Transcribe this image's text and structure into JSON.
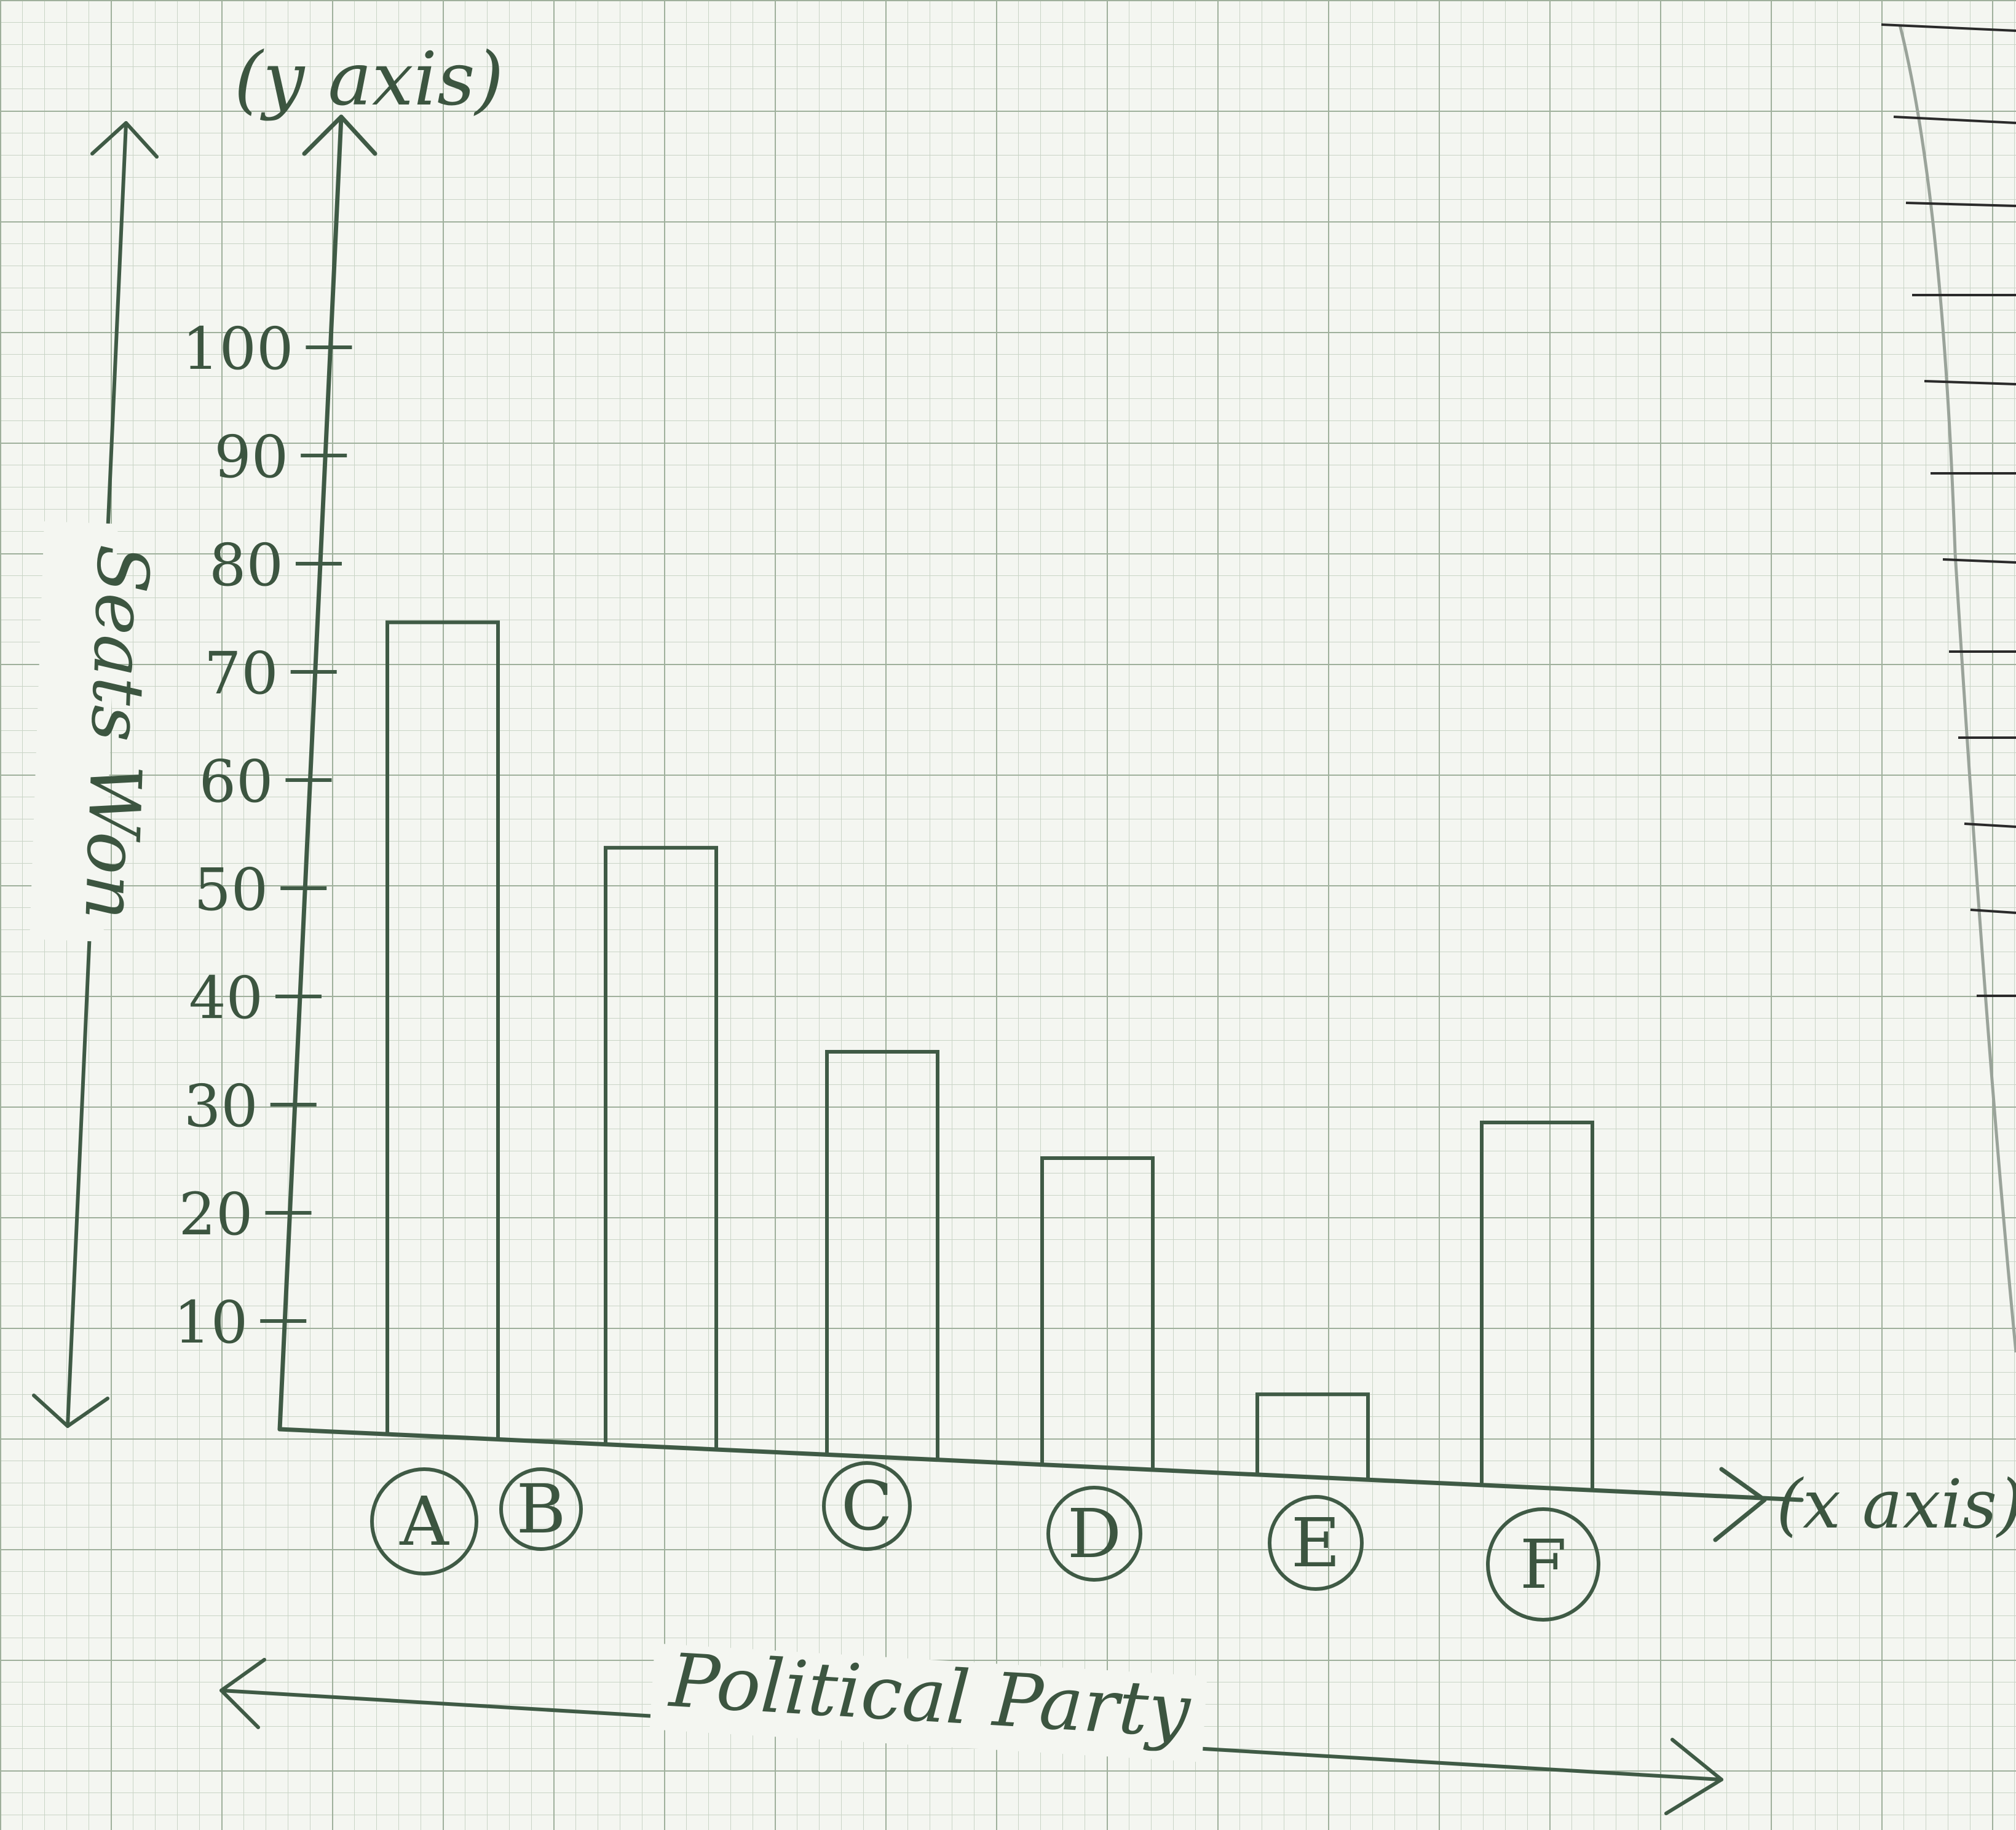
{
  "chart_data": {
    "type": "bar",
    "title": "",
    "xlabel": "Political Party",
    "ylabel": "Seats Won",
    "x_axis_tag": "(x axis)",
    "y_axis_tag": "(y axis)",
    "categories": [
      "A",
      "B",
      "C",
      "D",
      "E",
      "F"
    ],
    "values": [
      75,
      55,
      37,
      28,
      7,
      33
    ],
    "ylim": [
      0,
      110
    ],
    "yticks": [
      10,
      20,
      30,
      40,
      50,
      60,
      70,
      80,
      90,
      100
    ],
    "ytick_labels": [
      "10",
      "20",
      "30",
      "40",
      "50",
      "60",
      "70",
      "80",
      "90",
      "100"
    ],
    "grid": true,
    "legend": "none",
    "colors": {
      "paper": "#f4f6f1",
      "grid_minor": "#c9d4c6",
      "grid_major": "#9fb09c",
      "ink": "#3f5a45"
    }
  }
}
